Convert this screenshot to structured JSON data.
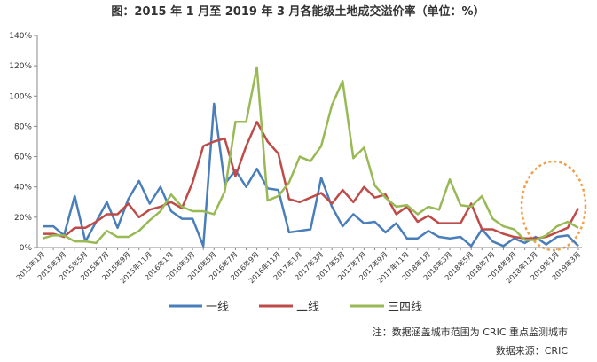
{
  "chart_data": {
    "type": "line",
    "title": "图：2015 年 1 月至 2019 年 3 月各能级土地成交溢价率（单位：%）",
    "notes": [
      "注：数据涵盖城市范围为 CRIC 重点监测城市",
      "数据来源：CRIC"
    ],
    "categories": [
      "2015年1月",
      null,
      "2015年3月",
      null,
      "2015年5月",
      null,
      "2015年7月",
      null,
      "2015年9月",
      null,
      "2015年11月",
      null,
      "2016年1月",
      null,
      "2016年3月",
      null,
      "2016年5月",
      null,
      "2016年7月",
      null,
      "2016年9月",
      null,
      "2016年11月",
      null,
      "2017年1月",
      null,
      "2017年3月",
      null,
      "2017年5月",
      null,
      "2017年7月",
      null,
      "2017年9月",
      null,
      "2017年11月",
      null,
      "2018年1月",
      null,
      "2018年3月",
      null,
      "2018年5月",
      null,
      "2018年7月",
      null,
      "2018年9月",
      null,
      "2018年11月",
      null,
      "2019年1月",
      null,
      "2019年3月"
    ],
    "series": [
      {
        "name": "一线",
        "color": "#4a7ebb",
        "values": [
          14,
          14,
          8,
          34,
          4,
          17,
          30,
          13,
          32,
          44,
          29,
          40,
          24,
          19,
          19,
          1,
          95,
          42,
          51,
          40,
          52,
          39,
          38,
          10,
          11,
          12,
          46,
          27,
          14,
          22,
          16,
          17,
          10,
          16,
          6,
          6,
          11,
          7,
          6,
          7,
          1,
          12,
          4,
          1,
          6,
          3,
          7,
          2,
          7,
          8,
          1
        ]
      },
      {
        "name": "二线",
        "color": "#be4b48",
        "values": [
          9,
          9,
          7,
          13,
          13,
          17,
          22,
          22,
          29,
          20,
          25,
          27,
          30,
          26,
          43,
          67,
          70,
          72,
          47,
          67,
          83,
          70,
          62,
          32,
          30,
          33,
          36,
          29,
          38,
          30,
          40,
          33,
          35,
          22,
          27,
          17,
          21,
          16,
          16,
          16,
          29,
          12,
          12,
          9,
          7,
          6,
          6,
          7,
          10,
          13,
          26
        ]
      },
      {
        "name": "三四线",
        "color": "#98b954",
        "values": [
          6,
          8,
          8,
          4,
          4,
          3,
          11,
          7,
          7,
          11,
          18,
          24,
          35,
          27,
          24,
          24,
          22,
          37,
          83,
          83,
          119,
          31,
          34,
          43,
          60,
          57,
          67,
          94,
          110,
          59,
          66,
          41,
          33,
          27,
          28,
          22,
          27,
          25,
          45,
          28,
          27,
          34,
          19,
          14,
          12,
          5,
          5,
          8,
          14,
          17,
          13
        ]
      }
    ],
    "ylim": [
      0,
      140
    ],
    "yticks": [
      {
        "value": 0,
        "label": "0%"
      },
      {
        "value": 20,
        "label": "20%"
      },
      {
        "value": 40,
        "label": "40%"
      },
      {
        "value": 60,
        "label": "60%"
      },
      {
        "value": 80,
        "label": "80%"
      },
      {
        "value": 100,
        "label": "100%"
      },
      {
        "value": 120,
        "label": "120%"
      },
      {
        "value": 140,
        "label": "140%"
      }
    ],
    "grid": false
  }
}
